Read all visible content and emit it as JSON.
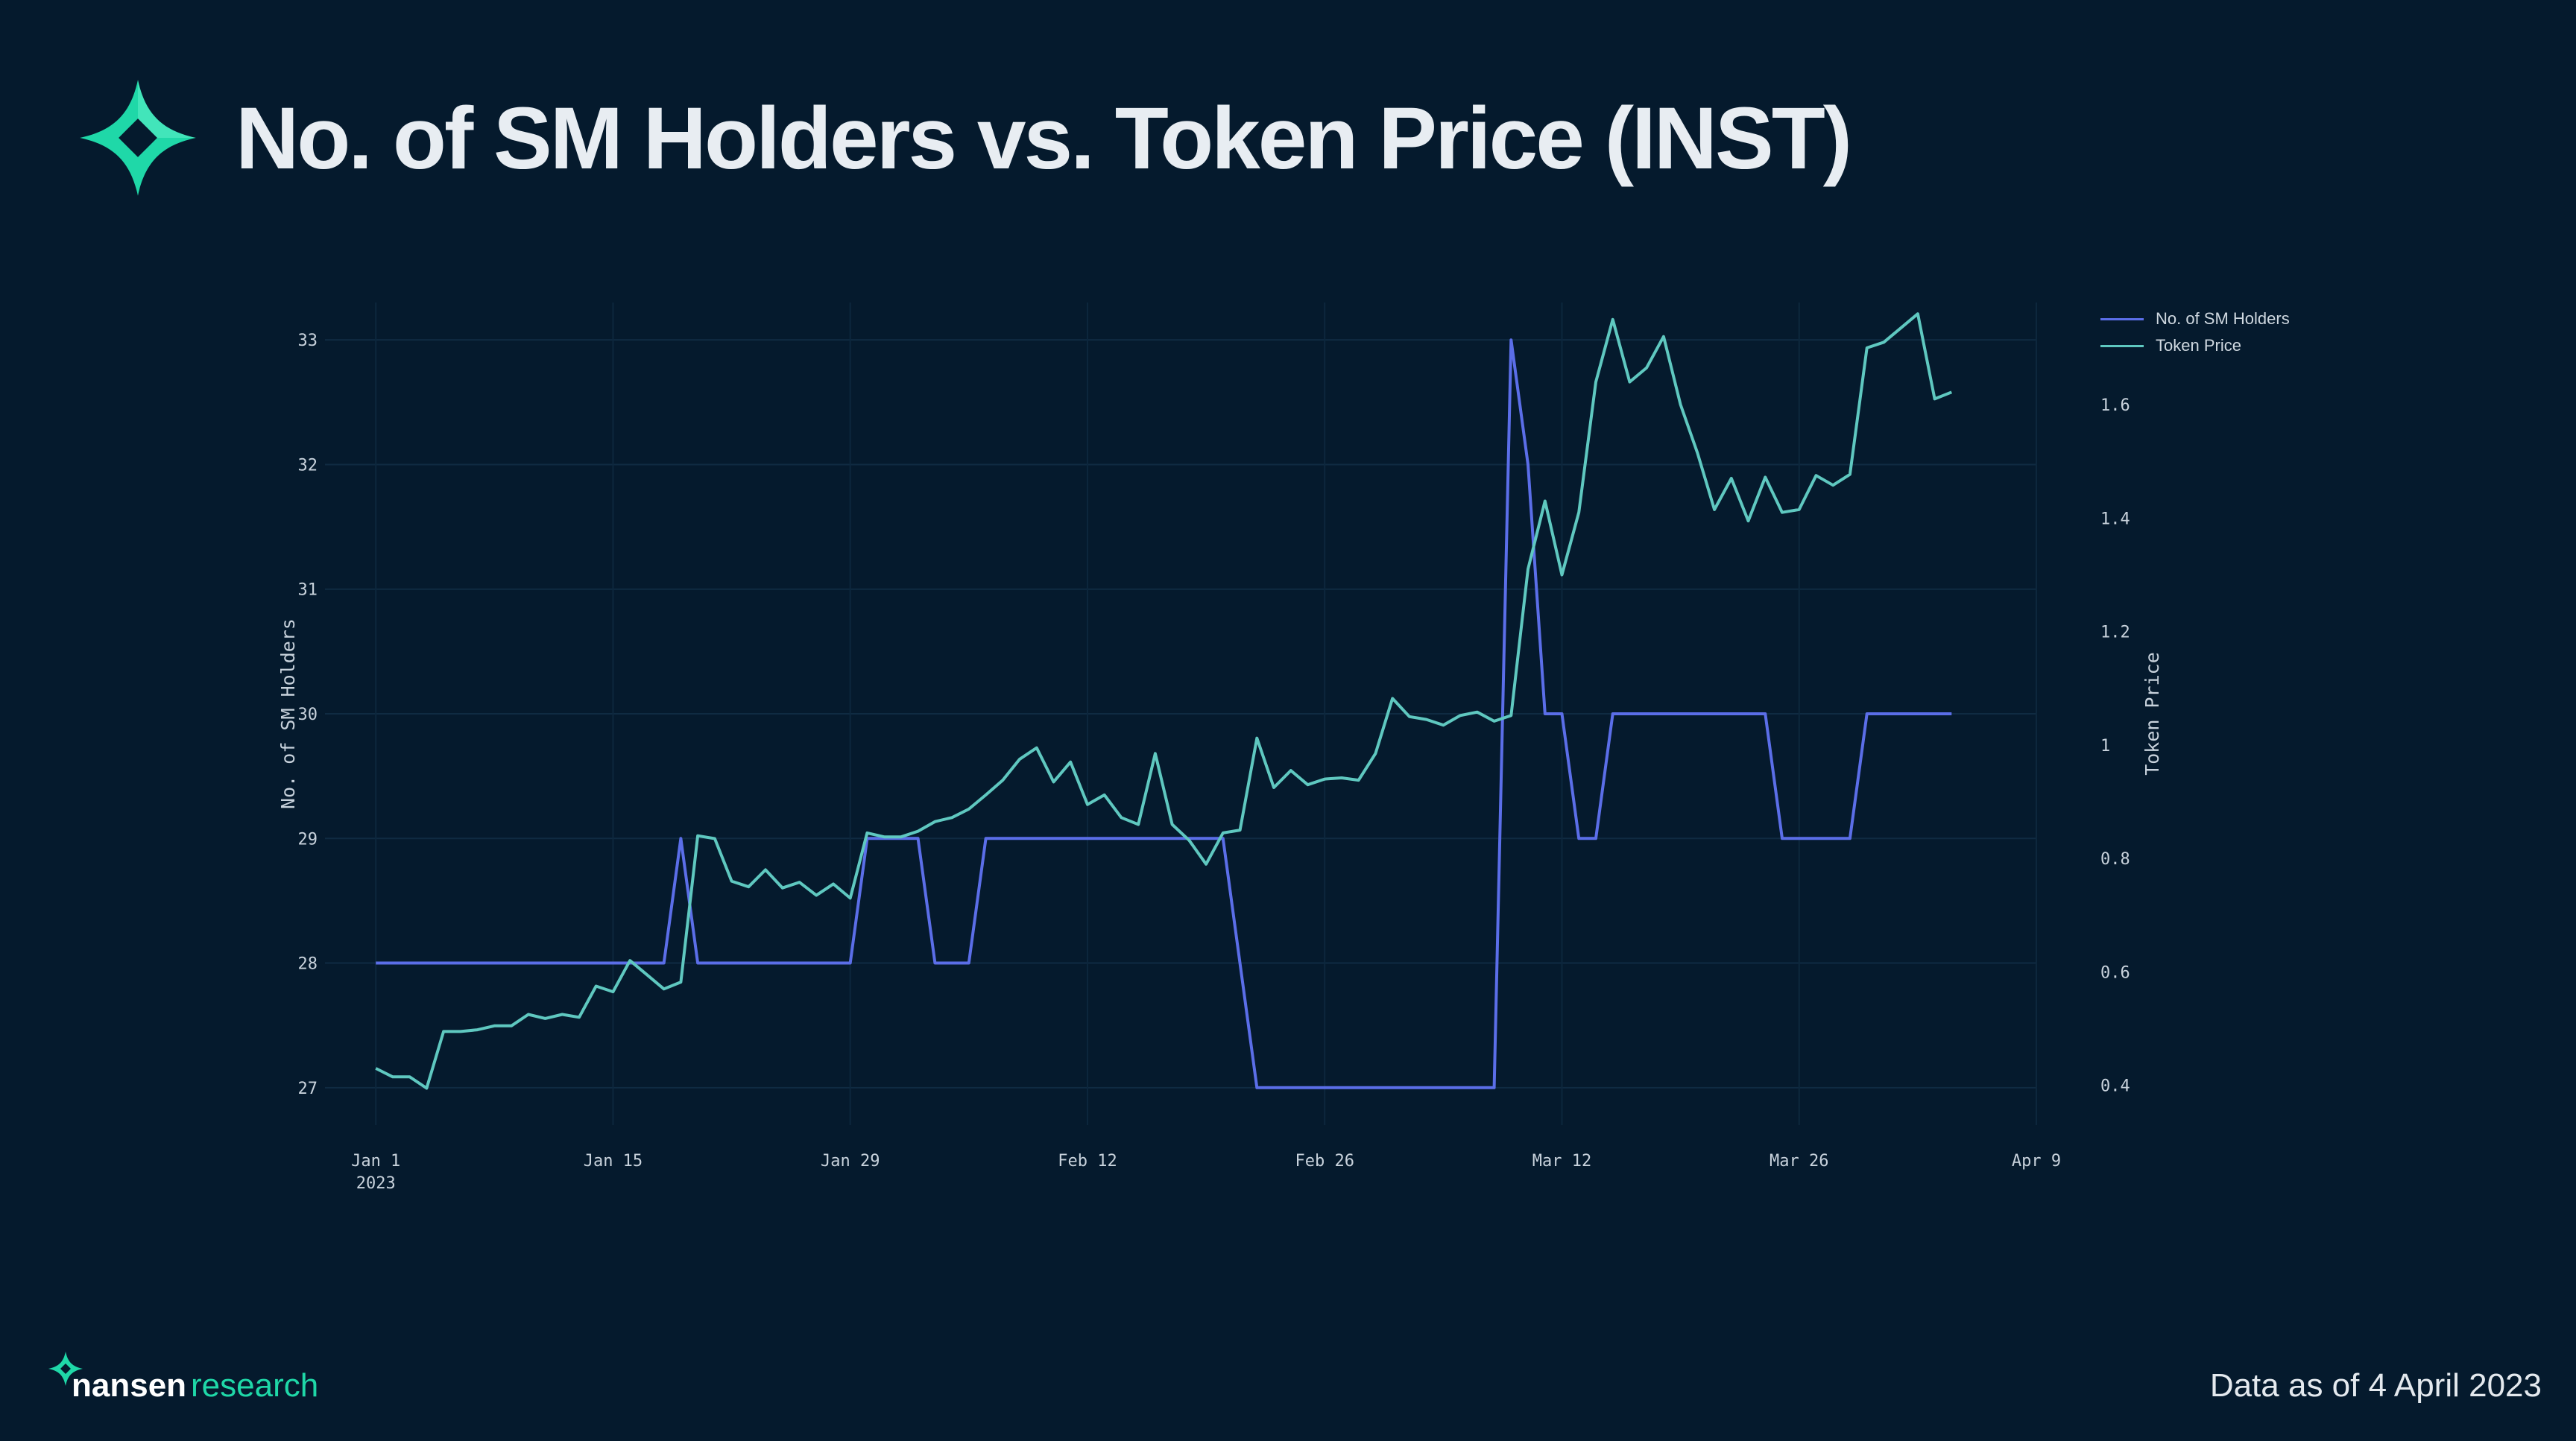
{
  "title": "No. of SM Holders vs. Token Price (INST)",
  "footer": {
    "brand_bold": "nansen",
    "brand_light": "research",
    "date_note": "Data as of 4 April 2023"
  },
  "colors": {
    "background": "#051a2d",
    "holders": "#5b6ee8",
    "price": "#5fc8c0",
    "brand_teal": "#1fd8a8"
  },
  "chart_data": {
    "type": "line",
    "title": "No. of SM Holders vs. Token Price (INST)",
    "xlabel": "",
    "ylabel": "No. of SM Holders",
    "y2label": "Token Price",
    "ylim": [
      26.7,
      33.3
    ],
    "y2lim": [
      0.33,
      1.78
    ],
    "y_ticks": [
      27,
      28,
      29,
      30,
      31,
      32,
      33
    ],
    "y2_ticks": [
      "0.4",
      "0.6",
      "0.8",
      "1",
      "1.2",
      "1.4",
      "1.6"
    ],
    "x_range": [
      "2022-12-29",
      "2023-04-09"
    ],
    "x_ticks": [
      {
        "date": "2023-01-01",
        "label": "Jan 1",
        "sublabel": "2023"
      },
      {
        "date": "2023-01-15",
        "label": "Jan 15",
        "sublabel": ""
      },
      {
        "date": "2023-01-29",
        "label": "Jan 29",
        "sublabel": ""
      },
      {
        "date": "2023-02-12",
        "label": "Feb 12",
        "sublabel": ""
      },
      {
        "date": "2023-02-26",
        "label": "Feb 26",
        "sublabel": ""
      },
      {
        "date": "2023-03-12",
        "label": "Mar 12",
        "sublabel": ""
      },
      {
        "date": "2023-03-26",
        "label": "Mar 26",
        "sublabel": ""
      },
      {
        "date": "2023-04-09",
        "label": "Apr 9",
        "sublabel": ""
      }
    ],
    "legend_position": "top-right",
    "grid": true,
    "series": [
      {
        "name": "No. of SM Holders",
        "axis": "left",
        "color": "#5b6ee8",
        "points": [
          [
            "2023-01-01",
            28
          ],
          [
            "2023-01-18",
            28
          ],
          [
            "2023-01-19",
            29
          ],
          [
            "2023-01-20",
            28
          ],
          [
            "2023-01-29",
            28
          ],
          [
            "2023-01-30",
            29
          ],
          [
            "2023-02-02",
            29
          ],
          [
            "2023-02-03",
            28
          ],
          [
            "2023-02-05",
            28
          ],
          [
            "2023-02-06",
            29
          ],
          [
            "2023-02-20",
            29
          ],
          [
            "2023-02-22",
            27
          ],
          [
            "2023-03-08",
            27
          ],
          [
            "2023-03-09",
            33
          ],
          [
            "2023-03-10",
            32
          ],
          [
            "2023-03-11",
            30
          ],
          [
            "2023-03-12",
            30
          ],
          [
            "2023-03-13",
            29
          ],
          [
            "2023-03-14",
            29
          ],
          [
            "2023-03-15",
            30
          ],
          [
            "2023-03-24",
            30
          ],
          [
            "2023-03-25",
            29
          ],
          [
            "2023-03-29",
            29
          ],
          [
            "2023-03-30",
            30
          ],
          [
            "2023-04-04",
            30
          ]
        ]
      },
      {
        "name": "Token Price",
        "axis": "right",
        "color": "#5fc8c0",
        "points": [
          [
            "2023-01-01",
            0.43
          ],
          [
            "2023-01-02",
            0.415
          ],
          [
            "2023-01-03",
            0.415
          ],
          [
            "2023-01-04",
            0.395
          ],
          [
            "2023-01-05",
            0.495
          ],
          [
            "2023-01-06",
            0.495
          ],
          [
            "2023-01-07",
            0.498
          ],
          [
            "2023-01-08",
            0.505
          ],
          [
            "2023-01-09",
            0.505
          ],
          [
            "2023-01-10",
            0.525
          ],
          [
            "2023-01-11",
            0.518
          ],
          [
            "2023-01-12",
            0.525
          ],
          [
            "2023-01-13",
            0.52
          ],
          [
            "2023-01-14",
            0.575
          ],
          [
            "2023-01-15",
            0.565
          ],
          [
            "2023-01-16",
            0.62
          ],
          [
            "2023-01-17",
            0.595
          ],
          [
            "2023-01-18",
            0.57
          ],
          [
            "2023-01-19",
            0.582
          ],
          [
            "2023-01-20",
            0.84
          ],
          [
            "2023-01-21",
            0.835
          ],
          [
            "2023-01-22",
            0.76
          ],
          [
            "2023-01-23",
            0.75
          ],
          [
            "2023-01-24",
            0.78
          ],
          [
            "2023-01-25",
            0.748
          ],
          [
            "2023-01-26",
            0.758
          ],
          [
            "2023-01-27",
            0.735
          ],
          [
            "2023-01-28",
            0.755
          ],
          [
            "2023-01-29",
            0.73
          ],
          [
            "2023-01-30",
            0.845
          ],
          [
            "2023-01-31",
            0.838
          ],
          [
            "2023-02-01",
            0.838
          ],
          [
            "2023-02-02",
            0.848
          ],
          [
            "2023-02-03",
            0.865
          ],
          [
            "2023-02-04",
            0.872
          ],
          [
            "2023-02-05",
            0.887
          ],
          [
            "2023-02-06",
            0.912
          ],
          [
            "2023-02-07",
            0.938
          ],
          [
            "2023-02-08",
            0.975
          ],
          [
            "2023-02-09",
            0.995
          ],
          [
            "2023-02-10",
            0.935
          ],
          [
            "2023-02-11",
            0.97
          ],
          [
            "2023-02-12",
            0.895
          ],
          [
            "2023-02-13",
            0.912
          ],
          [
            "2023-02-14",
            0.872
          ],
          [
            "2023-02-15",
            0.86
          ],
          [
            "2023-02-16",
            0.985
          ],
          [
            "2023-02-17",
            0.86
          ],
          [
            "2023-02-18",
            0.832
          ],
          [
            "2023-02-19",
            0.79
          ],
          [
            "2023-02-20",
            0.845
          ],
          [
            "2023-02-21",
            0.85
          ],
          [
            "2023-02-22",
            1.012
          ],
          [
            "2023-02-23",
            0.925
          ],
          [
            "2023-02-24",
            0.955
          ],
          [
            "2023-02-25",
            0.93
          ],
          [
            "2023-02-26",
            0.94
          ],
          [
            "2023-02-27",
            0.942
          ],
          [
            "2023-02-28",
            0.938
          ],
          [
            "2023-03-01",
            0.985
          ],
          [
            "2023-03-02",
            1.082
          ],
          [
            "2023-03-03",
            1.05
          ],
          [
            "2023-03-04",
            1.045
          ],
          [
            "2023-03-05",
            1.035
          ],
          [
            "2023-03-06",
            1.052
          ],
          [
            "2023-03-07",
            1.058
          ],
          [
            "2023-03-08",
            1.042
          ],
          [
            "2023-03-09",
            1.052
          ],
          [
            "2023-03-10",
            1.31
          ],
          [
            "2023-03-11",
            1.43
          ],
          [
            "2023-03-12",
            1.3
          ],
          [
            "2023-03-13",
            1.41
          ],
          [
            "2023-03-14",
            1.64
          ],
          [
            "2023-03-15",
            1.75
          ],
          [
            "2023-03-16",
            1.64
          ],
          [
            "2023-03-17",
            1.665
          ],
          [
            "2023-03-18",
            1.72
          ],
          [
            "2023-03-19",
            1.6
          ],
          [
            "2023-03-20",
            1.515
          ],
          [
            "2023-03-21",
            1.415
          ],
          [
            "2023-03-22",
            1.47
          ],
          [
            "2023-03-23",
            1.395
          ],
          [
            "2023-03-24",
            1.472
          ],
          [
            "2023-03-25",
            1.41
          ],
          [
            "2023-03-26",
            1.415
          ],
          [
            "2023-03-27",
            1.475
          ],
          [
            "2023-03-28",
            1.458
          ],
          [
            "2023-03-29",
            1.477
          ],
          [
            "2023-03-30",
            1.7
          ],
          [
            "2023-03-31",
            1.71
          ],
          [
            "2023-04-01",
            1.735
          ],
          [
            "2023-04-02",
            1.76
          ],
          [
            "2023-04-03",
            1.61
          ],
          [
            "2023-04-04",
            1.622
          ]
        ]
      }
    ]
  }
}
